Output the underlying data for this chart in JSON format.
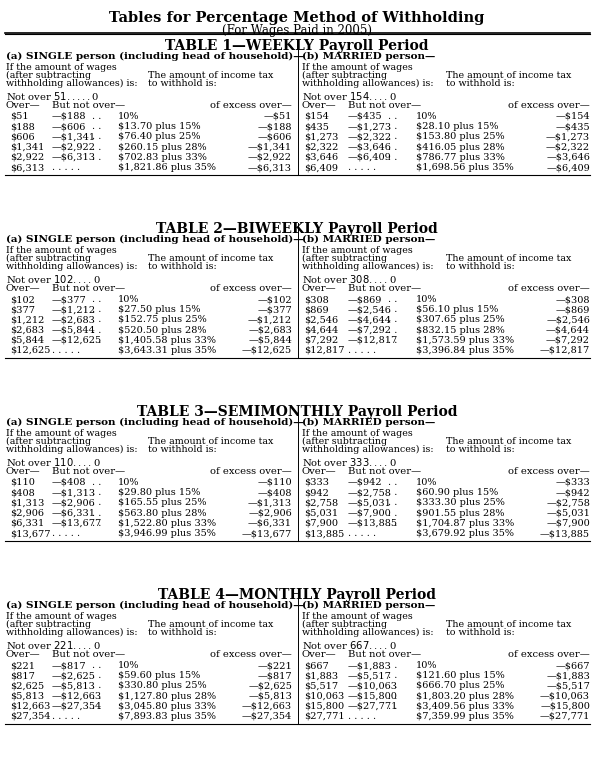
{
  "main_title": "Tables for Percentage Method of Withholding",
  "sub_title": "(For Wages Paid in 2005)",
  "tables": [
    {
      "title": "TABLE 1—WEEKLY Payroll Period",
      "single_label": "(a) SINGLE person (including head of household)—",
      "married_label": "(b) MARRIED person—",
      "single_not_over": "Not over $51 . . . . .",
      "married_not_over": "Not over $154 . . . .",
      "single_rows": [
        [
          "$51",
          "—$188",
          ". .",
          "10%",
          "—$51"
        ],
        [
          "$188",
          "—$606",
          ". .",
          "$13.70 plus 15%",
          "—$188"
        ],
        [
          "$606",
          "—$1,341",
          ". .",
          "$76.40 plus 25%",
          "—$606"
        ],
        [
          "$1,341",
          "—$2,922",
          ". .",
          "$260.15 plus 28%",
          "—$1,341"
        ],
        [
          "$2,922",
          "—$6,313",
          ". .",
          "$702.83 plus 33%",
          "—$2,922"
        ],
        [
          "$6,313",
          ". . . . .",
          "",
          "$1,821.86 plus 35%",
          "—$6,313"
        ]
      ],
      "married_rows": [
        [
          "$154",
          "—$435",
          ". .",
          "10%",
          "—$154"
        ],
        [
          "$435",
          "—$1,273",
          ". .",
          "$28.10 plus 15%",
          "—$435"
        ],
        [
          "$1,273",
          "—$2,322",
          ". .",
          "$153.80 plus 25%",
          "—$1,273"
        ],
        [
          "$2,322",
          "—$3,646",
          ". .",
          "$416.05 plus 28%",
          "—$2,322"
        ],
        [
          "$3,646",
          "—$6,409",
          ". .",
          "$786.77 plus 33%",
          "—$3,646"
        ],
        [
          "$6,409",
          ". . . . .",
          "",
          "$1,698.56 plus 35%",
          "—$6,409"
        ]
      ]
    },
    {
      "title": "TABLE 2—BIWEEKLY Payroll Period",
      "single_label": "(a) SINGLE person (including head of household)—",
      "married_label": "(b) MARRIED person—",
      "single_not_over": "Not over $102 . . . .",
      "married_not_over": "Not over $308 . . . .",
      "single_rows": [
        [
          "$102",
          "—$377",
          ". .",
          "10%",
          "—$102"
        ],
        [
          "$377",
          "—$1,212",
          ". .",
          "$27.50 plus 15%",
          "—$377"
        ],
        [
          "$1,212",
          "—$2,683",
          ". .",
          "$152.75 plus 25%",
          "—$1,212"
        ],
        [
          "$2,683",
          "—$5,844",
          ". .",
          "$520.50 plus 28%",
          "—$2,683"
        ],
        [
          "$5,844",
          "—$12,625",
          ". .",
          "$1,405.58 plus 33%",
          "—$5,844"
        ],
        [
          "$12,625",
          ". . . . .",
          "",
          "$3,643.31 plus 35%",
          "—$12,625"
        ]
      ],
      "married_rows": [
        [
          "$308",
          "—$869",
          ". .",
          "10%",
          "—$308"
        ],
        [
          "$869",
          "—$2,546",
          ". .",
          "$56.10 plus 15%",
          "—$869"
        ],
        [
          "$2,546",
          "—$4,644",
          ". .",
          "$307.65 plus 25%",
          "—$2,546"
        ],
        [
          "$4,644",
          "—$7,292",
          ". .",
          "$832.15 plus 28%",
          "—$4,644"
        ],
        [
          "$7,292",
          "—$12,817",
          ". .",
          "$1,573.59 plus 33%",
          "—$7,292"
        ],
        [
          "$12,817",
          ". . . . .",
          "",
          "$3,396.84 plus 35%",
          "—$12,817"
        ]
      ]
    },
    {
      "title": "TABLE 3—SEMIMONTHLY Payroll Period",
      "single_label": "(a) SINGLE person (including head of household)—",
      "married_label": "(b) MARRIED person—",
      "single_not_over": "Not over $110 . . . .",
      "married_not_over": "Not over $333 . . . .",
      "single_rows": [
        [
          "$110",
          "—$408",
          ". .",
          "10%",
          "—$110"
        ],
        [
          "$408",
          "—$1,313",
          ". .",
          "$29.80 plus 15%",
          "—$408"
        ],
        [
          "$1,313",
          "—$2,906",
          ". .",
          "$165.55 plus 25%",
          "—$1,313"
        ],
        [
          "$2,906",
          "—$6,331",
          ". .",
          "$563.80 plus 28%",
          "—$2,906"
        ],
        [
          "$6,331",
          "—$13,677",
          ". .",
          "$1,522.80 plus 33%",
          "—$6,331"
        ],
        [
          "$13,677",
          ". . . . .",
          "",
          "$3,946.99 plus 35%",
          "—$13,677"
        ]
      ],
      "married_rows": [
        [
          "$333",
          "—$942",
          ". .",
          "10%",
          "—$333"
        ],
        [
          "$942",
          "—$2,758",
          ". .",
          "$60.90 plus 15%",
          "—$942"
        ],
        [
          "$2,758",
          "—$5,031",
          ". .",
          "$333.30 plus 25%",
          "—$2,758"
        ],
        [
          "$5,031",
          "—$7,900",
          ". .",
          "$901.55 plus 28%",
          "—$5,031"
        ],
        [
          "$7,900",
          "—$13,885",
          ". .",
          "$1,704.87 plus 33%",
          "—$7,900"
        ],
        [
          "$13,885",
          ". . . . .",
          "",
          "$3,679.92 plus 35%",
          "—$13,885"
        ]
      ]
    },
    {
      "title": "TABLE 4—MONTHLY Payroll Period",
      "single_label": "(a) SINGLE person (including head of household)—",
      "married_label": "(b) MARRIED person—",
      "single_not_over": "Not over $221 . . . .",
      "married_not_over": "Not over $667 . . . .",
      "single_rows": [
        [
          "$221",
          "—$817",
          ". .",
          "10%",
          "—$221"
        ],
        [
          "$817",
          "—$2,625",
          ". .",
          "$59.60 plus 15%",
          "—$817"
        ],
        [
          "$2,625",
          "—$5,813",
          ". .",
          "$330.80 plus 25%",
          "—$2,625"
        ],
        [
          "$5,813",
          "—$12,663",
          ". .",
          "$1,127.80 plus 28%",
          "—$5,813"
        ],
        [
          "$12,663",
          "—$27,354",
          ". .",
          "$3,045.80 plus 33%",
          "—$12,663"
        ],
        [
          "$27,354",
          ". . . . .",
          "",
          "$7,893.83 plus 35%",
          "—$27,354"
        ]
      ],
      "married_rows": [
        [
          "$667",
          "—$1,883",
          ". .",
          "10%",
          "—$667"
        ],
        [
          "$1,883",
          "—$5,517",
          ". .",
          "$121.60 plus 15%",
          "—$1,883"
        ],
        [
          "$5,517",
          "—$10,063",
          ". .",
          "$666.70 plus 25%",
          "—$5,517"
        ],
        [
          "$10,063",
          "—$15,800",
          ". .",
          "$1,803.20 plus 28%",
          "—$10,063"
        ],
        [
          "$15,800",
          "—$27,771",
          ". .",
          "$3,409.56 plus 33%",
          "—$15,800"
        ],
        [
          "$27,771",
          ". . . . .",
          "",
          "$7,359.99 plus 35%",
          "—$27,771"
        ]
      ]
    }
  ]
}
